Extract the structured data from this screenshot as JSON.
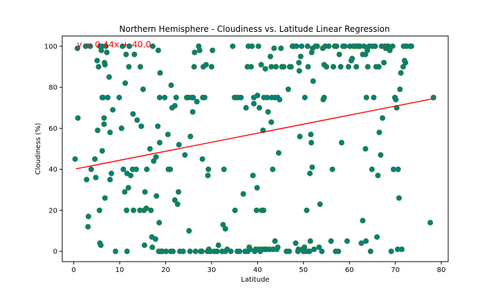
{
  "chart_data": {
    "type": "scatter",
    "title": "Northern Hemisphere - Cloudiness vs. Latitude Linear Regression",
    "xlabel": "Latitude",
    "ylabel": "Cloudiness (%)",
    "xlim": [
      -2.5,
      81.5
    ],
    "ylim": [
      -5,
      105
    ],
    "xticks": [
      0,
      10,
      20,
      30,
      40,
      50,
      60,
      70,
      80
    ],
    "yticks": [
      0,
      20,
      40,
      60,
      80,
      100
    ],
    "grid": false,
    "marker_color": "#008080",
    "marker_edge_color": "#2e7d32",
    "regression": {
      "slope": 0.44,
      "intercept": 40.0,
      "x_range": [
        0.5,
        78.3
      ],
      "color": "#ff0000",
      "equation": "y = 0.44x + 40.0",
      "annotation_at": [
        0.7,
        99.5
      ]
    },
    "points": [
      [
        0.3,
        45
      ],
      [
        0.8,
        99
      ],
      [
        0.9,
        65
      ],
      [
        2.6,
        100
      ],
      [
        2.8,
        35
      ],
      [
        3.1,
        12
      ],
      [
        3.2,
        17
      ],
      [
        3.6,
        100
      ],
      [
        3.8,
        40
      ],
      [
        4.6,
        45
      ],
      [
        4.8,
        36
      ],
      [
        5.1,
        93
      ],
      [
        5.2,
        59
      ],
      [
        5.4,
        90
      ],
      [
        5.6,
        20
      ],
      [
        5.7,
        4
      ],
      [
        5.9,
        3
      ],
      [
        5.7,
        100
      ],
      [
        6.0,
        98
      ],
      [
        6.1,
        100
      ],
      [
        6.2,
        75
      ],
      [
        6.2,
        49
      ],
      [
        6.4,
        75
      ],
      [
        6.6,
        62
      ],
      [
        6.6,
        65
      ],
      [
        6.7,
        92
      ],
      [
        6.8,
        91
      ],
      [
        6.8,
        26
      ],
      [
        7.0,
        100
      ],
      [
        7.2,
        97
      ],
      [
        7.4,
        75
      ],
      [
        7.7,
        85
      ],
      [
        7.9,
        58
      ],
      [
        7.9,
        35
      ],
      [
        8.2,
        38
      ],
      [
        8.5,
        69
      ],
      [
        9.1,
        0
      ],
      [
        9.9,
        75
      ],
      [
        10.4,
        60
      ],
      [
        10.6,
        100
      ],
      [
        10.8,
        40
      ],
      [
        11.1,
        29
      ],
      [
        11.2,
        82
      ],
      [
        11.4,
        96
      ],
      [
        11.5,
        20
      ],
      [
        11.6,
        0
      ],
      [
        11.6,
        38
      ],
      [
        11.9,
        31
      ],
      [
        12.0,
        90
      ],
      [
        12.1,
        100
      ],
      [
        12.4,
        37
      ],
      [
        12.8,
        40
      ],
      [
        12.9,
        67
      ],
      [
        13.0,
        20
      ],
      [
        13.2,
        96
      ],
      [
        13.6,
        40
      ],
      [
        13.8,
        64
      ],
      [
        14.4,
        20
      ],
      [
        14.5,
        90
      ],
      [
        14.7,
        61
      ],
      [
        15.1,
        79
      ],
      [
        15.3,
        20
      ],
      [
        15.4,
        3
      ],
      [
        15.5,
        29
      ],
      [
        15.8,
        21
      ],
      [
        15.9,
        40
      ],
      [
        16.6,
        50
      ],
      [
        16.8,
        20
      ],
      [
        17.0,
        7
      ],
      [
        17.1,
        2
      ],
      [
        17.2,
        100
      ],
      [
        17.4,
        44
      ],
      [
        17.8,
        6
      ],
      [
        17.9,
        46
      ],
      [
        18.0,
        27
      ],
      [
        18.3,
        61
      ],
      [
        18.4,
        98
      ],
      [
        18.5,
        0
      ],
      [
        18.6,
        14
      ],
      [
        18.7,
        53
      ],
      [
        18.8,
        87
      ],
      [
        18.7,
        75
      ],
      [
        19.0,
        0
      ],
      [
        19.3,
        0
      ],
      [
        19.8,
        75
      ],
      [
        20.1,
        0
      ],
      [
        20.5,
        57
      ],
      [
        20.6,
        40
      ],
      [
        21.0,
        40
      ],
      [
        21.1,
        0
      ],
      [
        21.2,
        81
      ],
      [
        21.4,
        70
      ],
      [
        21.6,
        0
      ],
      [
        22.0,
        71
      ],
      [
        22.0,
        25
      ],
      [
        22.3,
        75
      ],
      [
        22.6,
        23
      ],
      [
        22.8,
        29
      ],
      [
        22.9,
        52
      ],
      [
        23.1,
        0
      ],
      [
        23.8,
        0
      ],
      [
        24.2,
        47
      ],
      [
        24.6,
        75
      ],
      [
        25.0,
        75
      ],
      [
        25.1,
        10
      ],
      [
        25.3,
        0
      ],
      [
        25.4,
        56
      ],
      [
        25.7,
        75
      ],
      [
        25.9,
        68
      ],
      [
        26.0,
        75
      ],
      [
        26.2,
        90
      ],
      [
        26.3,
        97
      ],
      [
        26.5,
        0
      ],
      [
        26.8,
        73
      ],
      [
        27.2,
        100
      ],
      [
        27.4,
        98
      ],
      [
        27.6,
        0
      ],
      [
        27.9,
        0
      ],
      [
        28.0,
        45
      ],
      [
        28.1,
        75
      ],
      [
        28.2,
        90
      ],
      [
        28.5,
        75
      ],
      [
        28.8,
        91
      ],
      [
        29.1,
        0
      ],
      [
        29.2,
        37
      ],
      [
        29.3,
        40
      ],
      [
        29.4,
        1
      ],
      [
        29.6,
        0
      ],
      [
        29.8,
        0
      ],
      [
        30.0,
        90
      ],
      [
        30.2,
        98
      ],
      [
        30.6,
        0
      ],
      [
        31.2,
        0
      ],
      [
        31.5,
        3
      ],
      [
        32.3,
        0
      ],
      [
        32.5,
        13
      ],
      [
        32.7,
        40
      ],
      [
        33.0,
        11
      ],
      [
        33.0,
        0
      ],
      [
        33.4,
        1
      ],
      [
        34.2,
        0
      ],
      [
        34.6,
        100
      ],
      [
        35.0,
        75
      ],
      [
        35.1,
        20
      ],
      [
        35.3,
        75
      ],
      [
        35.6,
        0
      ],
      [
        35.8,
        75
      ],
      [
        36.1,
        0
      ],
      [
        36.4,
        75
      ],
      [
        36.9,
        28
      ],
      [
        37.3,
        0
      ],
      [
        37.5,
        70
      ],
      [
        37.9,
        0
      ],
      [
        37.8,
        90
      ],
      [
        38.0,
        100
      ],
      [
        38.2,
        2
      ],
      [
        38.4,
        1
      ],
      [
        38.6,
        90
      ],
      [
        38.8,
        100
      ],
      [
        39.0,
        37
      ],
      [
        39.2,
        72
      ],
      [
        39.2,
        75
      ],
      [
        39.4,
        0
      ],
      [
        39.6,
        1
      ],
      [
        39.8,
        20
      ],
      [
        39.9,
        31
      ],
      [
        40.0,
        76
      ],
      [
        40.2,
        100
      ],
      [
        40.3,
        1
      ],
      [
        40.4,
        70
      ],
      [
        40.6,
        0
      ],
      [
        40.8,
        91
      ],
      [
        40.9,
        20
      ],
      [
        41.0,
        1
      ],
      [
        41.2,
        59
      ],
      [
        41.3,
        20
      ],
      [
        41.4,
        75
      ],
      [
        41.5,
        1
      ],
      [
        41.7,
        89
      ],
      [
        41.9,
        1
      ],
      [
        42.1,
        75
      ],
      [
        42.3,
        68
      ],
      [
        42.6,
        1
      ],
      [
        42.8,
        95
      ],
      [
        43.0,
        63
      ],
      [
        43.0,
        90
      ],
      [
        43.1,
        75
      ],
      [
        43.3,
        40
      ],
      [
        43.4,
        1
      ],
      [
        43.6,
        99
      ],
      [
        43.8,
        75
      ],
      [
        43.8,
        5
      ],
      [
        44.0,
        90
      ],
      [
        44.2,
        1
      ],
      [
        44.4,
        2
      ],
      [
        44.4,
        75
      ],
      [
        44.6,
        48
      ],
      [
        44.8,
        74
      ],
      [
        45.1,
        99
      ],
      [
        45.3,
        90
      ],
      [
        45.7,
        90
      ],
      [
        46.3,
        0
      ],
      [
        46.7,
        79
      ],
      [
        46.9,
        0
      ],
      [
        47.0,
        90
      ],
      [
        47.3,
        90
      ],
      [
        47.6,
        100
      ],
      [
        47.9,
        100
      ],
      [
        48.3,
        4
      ],
      [
        48.5,
        100
      ],
      [
        48.8,
        0
      ],
      [
        48.9,
        1
      ],
      [
        49.0,
        92
      ],
      [
        49.1,
        88
      ],
      [
        49.2,
        56
      ],
      [
        49.4,
        95
      ],
      [
        49.6,
        100
      ],
      [
        49.8,
        1
      ],
      [
        50.0,
        0
      ],
      [
        50.2,
        2
      ],
      [
        50.3,
        75
      ],
      [
        50.5,
        0
      ],
      [
        50.7,
        20
      ],
      [
        50.9,
        100
      ],
      [
        51.0,
        90
      ],
      [
        51.1,
        0
      ],
      [
        51.3,
        0
      ],
      [
        51.4,
        38
      ],
      [
        51.5,
        5
      ],
      [
        51.6,
        57
      ],
      [
        51.7,
        53
      ],
      [
        51.8,
        97
      ],
      [
        51.9,
        41
      ],
      [
        52.0,
        99
      ],
      [
        52.1,
        83
      ],
      [
        52.3,
        1
      ],
      [
        52.6,
        100
      ],
      [
        53.0,
        100
      ],
      [
        53.4,
        2
      ],
      [
        53.6,
        23
      ],
      [
        54.0,
        0
      ],
      [
        54.2,
        99
      ],
      [
        54.3,
        74
      ],
      [
        54.5,
        75
      ],
      [
        54.5,
        91
      ],
      [
        54.7,
        100
      ],
      [
        55.0,
        90
      ],
      [
        55.5,
        100
      ],
      [
        56.0,
        5
      ],
      [
        56.3,
        40
      ],
      [
        56.5,
        90
      ],
      [
        56.8,
        100
      ],
      [
        57.0,
        0
      ],
      [
        57.2,
        100
      ],
      [
        57.6,
        0
      ],
      [
        57.8,
        96
      ],
      [
        58.1,
        90
      ],
      [
        58.3,
        53
      ],
      [
        58.6,
        100
      ],
      [
        59.0,
        100
      ],
      [
        59.5,
        5
      ],
      [
        59.8,
        90
      ],
      [
        60.1,
        100
      ],
      [
        60.4,
        93
      ],
      [
        60.6,
        94
      ],
      [
        60.9,
        100
      ],
      [
        61.2,
        100
      ],
      [
        61.5,
        90
      ],
      [
        61.8,
        100
      ],
      [
        62.0,
        100
      ],
      [
        62.3,
        100
      ],
      [
        62.6,
        4
      ],
      [
        62.9,
        96
      ],
      [
        62.9,
        15
      ],
      [
        63.2,
        100
      ],
      [
        63.5,
        96
      ],
      [
        63.5,
        50
      ],
      [
        63.6,
        5
      ],
      [
        63.7,
        75
      ],
      [
        63.9,
        98
      ],
      [
        64.0,
        90
      ],
      [
        64.3,
        100
      ],
      [
        64.6,
        0
      ],
      [
        64.9,
        40
      ],
      [
        65.0,
        100
      ],
      [
        65.3,
        75
      ],
      [
        65.6,
        100
      ],
      [
        65.8,
        90
      ],
      [
        66.0,
        7
      ],
      [
        66.2,
        37
      ],
      [
        66.4,
        90
      ],
      [
        66.5,
        58
      ],
      [
        66.8,
        47
      ],
      [
        67.0,
        100
      ],
      [
        67.2,
        65
      ],
      [
        67.5,
        92
      ],
      [
        67.7,
        100
      ],
      [
        67.9,
        99
      ],
      [
        68.2,
        100
      ],
      [
        68.5,
        100
      ],
      [
        68.8,
        98
      ],
      [
        69.1,
        0
      ],
      [
        69.4,
        100
      ],
      [
        69.6,
        40
      ],
      [
        69.9,
        75
      ],
      [
        70.1,
        74
      ],
      [
        70.3,
        70
      ],
      [
        70.5,
        1
      ],
      [
        70.6,
        40
      ],
      [
        70.8,
        26
      ],
      [
        71.0,
        79
      ],
      [
        71.2,
        87
      ],
      [
        71.4,
        1
      ],
      [
        71.7,
        90
      ],
      [
        71.8,
        100
      ],
      [
        72.0,
        93
      ],
      [
        72.2,
        92
      ],
      [
        72.4,
        100
      ],
      [
        73.2,
        100
      ],
      [
        73.5,
        100
      ],
      [
        77.6,
        14
      ],
      [
        78.3,
        75
      ]
    ]
  }
}
